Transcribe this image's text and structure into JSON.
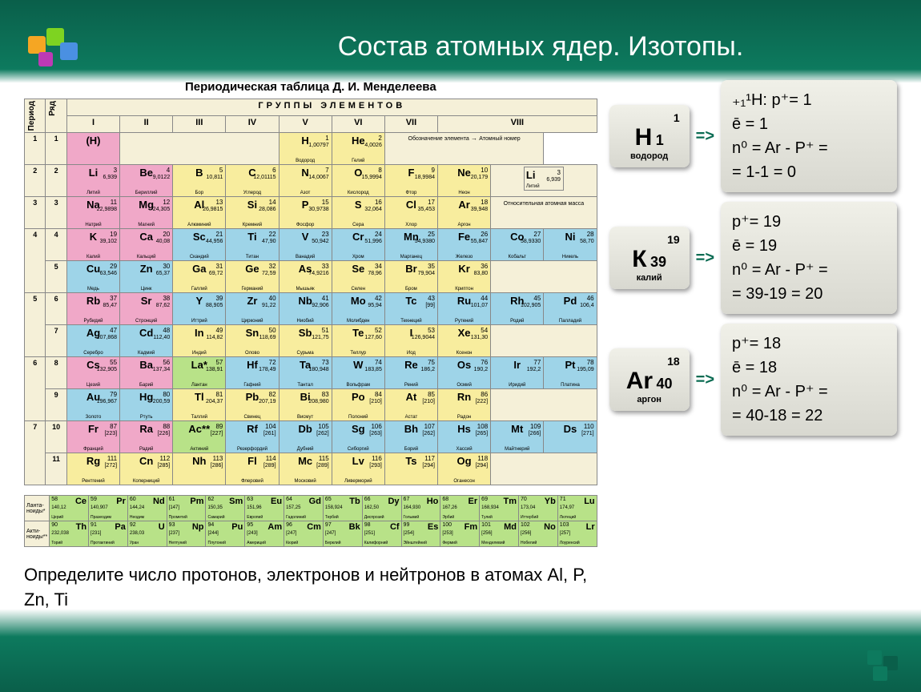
{
  "title": "Состав атомных ядер. Изотопы.",
  "table_title": "Периодическая таблица Д. И. Менделеева",
  "group_header": "ГРУППЫ ЭЛЕМЕНТОВ",
  "col_period": "Период",
  "col_row": "Ряд",
  "groups": [
    "I",
    "II",
    "III",
    "IV",
    "V",
    "VI",
    "VII",
    "VIII"
  ],
  "legend": {
    "obz": "Обозначение элемента",
    "atnum": "Атомный номер",
    "relmass": "Относительная атомная масса",
    "li_sym": "Li",
    "li_num": "3",
    "li_mass": "6,939",
    "li_name": "Литий"
  },
  "rows": [
    {
      "p": "1",
      "r": "1",
      "cells": [
        {
          "sym": "(H)",
          "num": "",
          "mass": "",
          "name": "",
          "cls": "c-pink",
          "span": 1
        },
        {
          "blank": true,
          "span": 3,
          "cls": "c-cream"
        },
        {
          "sym": "H",
          "num": "1",
          "mass": "1,00797",
          "name": "Водород",
          "cls": "c-yellow"
        },
        {
          "sym": "He",
          "num": "2",
          "mass": "4,0026",
          "name": "Гелий",
          "cls": "c-yellow"
        },
        {
          "legend": true,
          "span": 3
        }
      ]
    },
    {
      "p": "2",
      "r": "2",
      "cells": [
        {
          "sym": "Li",
          "num": "3",
          "mass": "6,939",
          "name": "Литий",
          "cls": "c-pink"
        },
        {
          "sym": "Be",
          "num": "4",
          "mass": "9,0122",
          "name": "Бериллий",
          "cls": "c-pink"
        },
        {
          "sym": "B",
          "num": "5",
          "mass": "10,811",
          "name": "Бор",
          "cls": "c-yellow"
        },
        {
          "sym": "C",
          "num": "6",
          "mass": "12,01115",
          "name": "Углерод",
          "cls": "c-yellow"
        },
        {
          "sym": "N",
          "num": "7",
          "mass": "14,0067",
          "name": "Азот",
          "cls": "c-yellow"
        },
        {
          "sym": "O",
          "num": "8",
          "mass": "15,9994",
          "name": "Кислород",
          "cls": "c-yellow"
        },
        {
          "sym": "F",
          "num": "9",
          "mass": "18,9984",
          "name": "Фтор",
          "cls": "c-yellow"
        },
        {
          "sym": "Ne",
          "num": "10",
          "mass": "20,179",
          "name": "Неон",
          "cls": "c-yellow"
        },
        {
          "legend2": true,
          "span": 3
        }
      ]
    },
    {
      "p": "3",
      "r": "3",
      "cells": [
        {
          "sym": "Na",
          "num": "11",
          "mass": "22,9898",
          "name": "Натрий",
          "cls": "c-pink"
        },
        {
          "sym": "Mg",
          "num": "12",
          "mass": "24,305",
          "name": "Магний",
          "cls": "c-pink"
        },
        {
          "sym": "Al",
          "num": "13",
          "mass": "26,9815",
          "name": "Алюминий",
          "cls": "c-yellow"
        },
        {
          "sym": "Si",
          "num": "14",
          "mass": "28,086",
          "name": "Кремний",
          "cls": "c-yellow"
        },
        {
          "sym": "P",
          "num": "15",
          "mass": "30,9738",
          "name": "Фосфор",
          "cls": "c-yellow"
        },
        {
          "sym": "S",
          "num": "16",
          "mass": "32,064",
          "name": "Сера",
          "cls": "c-yellow"
        },
        {
          "sym": "Cl",
          "num": "17",
          "mass": "35,453",
          "name": "Хлор",
          "cls": "c-yellow"
        },
        {
          "sym": "Ar",
          "num": "18",
          "mass": "39,948",
          "name": "Аргон",
          "cls": "c-yellow"
        },
        {
          "blank": true,
          "span": 3,
          "cls": "c-cream",
          "relm": true
        }
      ]
    },
    {
      "p": "4",
      "r": "4",
      "cells": [
        {
          "sym": "K",
          "num": "19",
          "mass": "39,102",
          "name": "Калий",
          "cls": "c-pink"
        },
        {
          "sym": "Ca",
          "num": "20",
          "mass": "40,08",
          "name": "Кальций",
          "cls": "c-pink"
        },
        {
          "sym": "Sc",
          "num": "21",
          "mass": "44,956",
          "name": "Скандий",
          "cls": "c-blue"
        },
        {
          "sym": "Ti",
          "num": "22",
          "mass": "47,90",
          "name": "Титан",
          "cls": "c-blue"
        },
        {
          "sym": "V",
          "num": "23",
          "mass": "50,942",
          "name": "Ванадий",
          "cls": "c-blue"
        },
        {
          "sym": "Cr",
          "num": "24",
          "mass": "51,996",
          "name": "Хром",
          "cls": "c-blue"
        },
        {
          "sym": "Mn",
          "num": "25",
          "mass": "54,9380",
          "name": "Марганец",
          "cls": "c-blue"
        },
        {
          "sym": "Fe",
          "num": "26",
          "mass": "55,847",
          "name": "Железо",
          "cls": "c-blue"
        },
        {
          "sym": "Co",
          "num": "27",
          "mass": "58,9330",
          "name": "Кобальт",
          "cls": "c-blue"
        },
        {
          "sym": "Ni",
          "num": "28",
          "mass": "58,70",
          "name": "Никель",
          "cls": "c-blue"
        }
      ]
    },
    {
      "p": "4",
      "r": "5",
      "cells": [
        {
          "sym": "Cu",
          "num": "29",
          "mass": "63,546",
          "name": "Медь",
          "cls": "c-blue"
        },
        {
          "sym": "Zn",
          "num": "30",
          "mass": "65,37",
          "name": "Цинк",
          "cls": "c-blue"
        },
        {
          "sym": "Ga",
          "num": "31",
          "mass": "69,72",
          "name": "Галлий",
          "cls": "c-yellow"
        },
        {
          "sym": "Ge",
          "num": "32",
          "mass": "72,59",
          "name": "Германий",
          "cls": "c-yellow"
        },
        {
          "sym": "As",
          "num": "33",
          "mass": "74,9216",
          "name": "Мышьяк",
          "cls": "c-yellow"
        },
        {
          "sym": "Se",
          "num": "34",
          "mass": "78,96",
          "name": "Селен",
          "cls": "c-yellow"
        },
        {
          "sym": "Br",
          "num": "35",
          "mass": "79,904",
          "name": "Бром",
          "cls": "c-yellow"
        },
        {
          "sym": "Kr",
          "num": "36",
          "mass": "83,80",
          "name": "Криптон",
          "cls": "c-yellow"
        },
        {
          "blank": true,
          "span": 3,
          "cls": "c-cream"
        }
      ]
    },
    {
      "p": "5",
      "r": "6",
      "cells": [
        {
          "sym": "Rb",
          "num": "37",
          "mass": "85,47",
          "name": "Рубидий",
          "cls": "c-pink"
        },
        {
          "sym": "Sr",
          "num": "38",
          "mass": "87,62",
          "name": "Стронций",
          "cls": "c-pink"
        },
        {
          "sym": "Y",
          "num": "39",
          "mass": "88,905",
          "name": "Иттрий",
          "cls": "c-blue"
        },
        {
          "sym": "Zr",
          "num": "40",
          "mass": "91,22",
          "name": "Цирконий",
          "cls": "c-blue"
        },
        {
          "sym": "Nb",
          "num": "41",
          "mass": "92,906",
          "name": "Ниобий",
          "cls": "c-blue"
        },
        {
          "sym": "Mo",
          "num": "42",
          "mass": "95,94",
          "name": "Молибден",
          "cls": "c-blue"
        },
        {
          "sym": "Tc",
          "num": "43",
          "mass": "[99]",
          "name": "Технеций",
          "cls": "c-blue"
        },
        {
          "sym": "Ru",
          "num": "44",
          "mass": "101,07",
          "name": "Рутений",
          "cls": "c-blue"
        },
        {
          "sym": "Rh",
          "num": "45",
          "mass": "102,905",
          "name": "Родий",
          "cls": "c-blue"
        },
        {
          "sym": "Pd",
          "num": "46",
          "mass": "106,4",
          "name": "Палладий",
          "cls": "c-blue"
        }
      ]
    },
    {
      "p": "5",
      "r": "7",
      "cells": [
        {
          "sym": "Ag",
          "num": "47",
          "mass": "107,868",
          "name": "Серебро",
          "cls": "c-blue"
        },
        {
          "sym": "Cd",
          "num": "48",
          "mass": "112,40",
          "name": "Кадмий",
          "cls": "c-blue"
        },
        {
          "sym": "In",
          "num": "49",
          "mass": "114,82",
          "name": "Индий",
          "cls": "c-yellow"
        },
        {
          "sym": "Sn",
          "num": "50",
          "mass": "118,69",
          "name": "Олово",
          "cls": "c-yellow"
        },
        {
          "sym": "Sb",
          "num": "51",
          "mass": "121,75",
          "name": "Сурьма",
          "cls": "c-yellow"
        },
        {
          "sym": "Te",
          "num": "52",
          "mass": "127,60",
          "name": "Теллур",
          "cls": "c-yellow"
        },
        {
          "sym": "I",
          "num": "53",
          "mass": "126,9044",
          "name": "Иод",
          "cls": "c-yellow"
        },
        {
          "sym": "Xe",
          "num": "54",
          "mass": "131,30",
          "name": "Ксенон",
          "cls": "c-yellow"
        },
        {
          "blank": true,
          "span": 3,
          "cls": "c-cream"
        }
      ]
    },
    {
      "p": "6",
      "r": "8",
      "cells": [
        {
          "sym": "Cs",
          "num": "55",
          "mass": "132,905",
          "name": "Цезий",
          "cls": "c-pink"
        },
        {
          "sym": "Ba",
          "num": "56",
          "mass": "137,34",
          "name": "Барий",
          "cls": "c-pink"
        },
        {
          "sym": "La*",
          "num": "57",
          "mass": "138,91",
          "name": "Лантан",
          "cls": "c-green"
        },
        {
          "sym": "Hf",
          "num": "72",
          "mass": "178,49",
          "name": "Гафний",
          "cls": "c-blue"
        },
        {
          "sym": "Ta",
          "num": "73",
          "mass": "180,948",
          "name": "Тантал",
          "cls": "c-blue"
        },
        {
          "sym": "W",
          "num": "74",
          "mass": "183,85",
          "name": "Вольфрам",
          "cls": "c-blue"
        },
        {
          "sym": "Re",
          "num": "75",
          "mass": "186,2",
          "name": "Рений",
          "cls": "c-blue"
        },
        {
          "sym": "Os",
          "num": "76",
          "mass": "190,2",
          "name": "Осмий",
          "cls": "c-blue"
        },
        {
          "sym": "Ir",
          "num": "77",
          "mass": "192,2",
          "name": "Иридий",
          "cls": "c-blue"
        },
        {
          "sym": "Pt",
          "num": "78",
          "mass": "195,09",
          "name": "Платина",
          "cls": "c-blue"
        }
      ]
    },
    {
      "p": "6",
      "r": "9",
      "cells": [
        {
          "sym": "Au",
          "num": "79",
          "mass": "196,967",
          "name": "Золото",
          "cls": "c-blue"
        },
        {
          "sym": "Hg",
          "num": "80",
          "mass": "200,59",
          "name": "Ртуть",
          "cls": "c-blue"
        },
        {
          "sym": "Tl",
          "num": "81",
          "mass": "204,37",
          "name": "Таллий",
          "cls": "c-yellow"
        },
        {
          "sym": "Pb",
          "num": "82",
          "mass": "207,19",
          "name": "Свинец",
          "cls": "c-yellow"
        },
        {
          "sym": "Bi",
          "num": "83",
          "mass": "208,980",
          "name": "Висмут",
          "cls": "c-yellow"
        },
        {
          "sym": "Po",
          "num": "84",
          "mass": "[210]",
          "name": "Полоний",
          "cls": "c-yellow"
        },
        {
          "sym": "At",
          "num": "85",
          "mass": "[210]",
          "name": "Астат",
          "cls": "c-yellow"
        },
        {
          "sym": "Rn",
          "num": "86",
          "mass": "[222]",
          "name": "Радон",
          "cls": "c-yellow"
        },
        {
          "blank": true,
          "span": 3,
          "cls": "c-cream"
        }
      ]
    },
    {
      "p": "7",
      "r": "10",
      "cells": [
        {
          "sym": "Fr",
          "num": "87",
          "mass": "[223]",
          "name": "Франций",
          "cls": "c-pink"
        },
        {
          "sym": "Ra",
          "num": "88",
          "mass": "[226]",
          "name": "Радий",
          "cls": "c-pink"
        },
        {
          "sym": "Ac**",
          "num": "89",
          "mass": "[227]",
          "name": "Актиний",
          "cls": "c-green"
        },
        {
          "sym": "Rf",
          "num": "104",
          "mass": "[261]",
          "name": "Резерфордий",
          "cls": "c-blue"
        },
        {
          "sym": "Db",
          "num": "105",
          "mass": "[262]",
          "name": "Дубний",
          "cls": "c-blue"
        },
        {
          "sym": "Sg",
          "num": "106",
          "mass": "[263]",
          "name": "Сиборгий",
          "cls": "c-blue"
        },
        {
          "sym": "Bh",
          "num": "107",
          "mass": "[262]",
          "name": "Борий",
          "cls": "c-blue"
        },
        {
          "sym": "Hs",
          "num": "108",
          "mass": "[265]",
          "name": "Хассий",
          "cls": "c-blue"
        },
        {
          "sym": "Mt",
          "num": "109",
          "mass": "[266]",
          "name": "Майтнерий",
          "cls": "c-blue"
        },
        {
          "sym": "Ds",
          "num": "110",
          "mass": "[271]",
          "name": "",
          "cls": "c-blue"
        }
      ]
    },
    {
      "p": "7",
      "r": "11",
      "cells": [
        {
          "sym": "Rg",
          "num": "111",
          "mass": "[272]",
          "name": "Рентгений",
          "cls": "c-yellow"
        },
        {
          "sym": "Cn",
          "num": "112",
          "mass": "[285]",
          "name": "Коперниций",
          "cls": "c-yellow"
        },
        {
          "sym": "Nh",
          "num": "113",
          "mass": "[286]",
          "name": "",
          "cls": "c-yellow"
        },
        {
          "sym": "Fl",
          "num": "114",
          "mass": "[289]",
          "name": "Флеровий",
          "cls": "c-yellow"
        },
        {
          "sym": "Mc",
          "num": "115",
          "mass": "[289]",
          "name": "Московий",
          "cls": "c-yellow"
        },
        {
          "sym": "Lv",
          "num": "116",
          "mass": "[293]",
          "name": "Ливерморий",
          "cls": "c-yellow"
        },
        {
          "sym": "Ts",
          "num": "117",
          "mass": "[294]",
          "name": "",
          "cls": "c-yellow"
        },
        {
          "sym": "Og",
          "num": "118",
          "mass": "[294]",
          "name": "Оганесон",
          "cls": "c-yellow"
        },
        {
          "blank": true,
          "span": 3,
          "cls": "c-cream"
        }
      ]
    }
  ],
  "fblock": {
    "lan_label": "Ланта-ноиды*",
    "act_label": "Акти-ноиды**",
    "lan": [
      {
        "sym": "Ce",
        "num": "58",
        "mass": "140,12",
        "name": "Церий"
      },
      {
        "sym": "Pr",
        "num": "59",
        "mass": "140,907",
        "name": "Празеодим"
      },
      {
        "sym": "Nd",
        "num": "60",
        "mass": "144,24",
        "name": "Неодим"
      },
      {
        "sym": "Pm",
        "num": "61",
        "mass": "[147]",
        "name": "Прометий"
      },
      {
        "sym": "Sm",
        "num": "62",
        "mass": "150,35",
        "name": "Самарий"
      },
      {
        "sym": "Eu",
        "num": "63",
        "mass": "151,96",
        "name": "Европий"
      },
      {
        "sym": "Gd",
        "num": "64",
        "mass": "157,25",
        "name": "Гадолиний"
      },
      {
        "sym": "Tb",
        "num": "65",
        "mass": "158,924",
        "name": "Тербий"
      },
      {
        "sym": "Dy",
        "num": "66",
        "mass": "162,50",
        "name": "Диспрозий"
      },
      {
        "sym": "Ho",
        "num": "67",
        "mass": "164,930",
        "name": "Гольмий"
      },
      {
        "sym": "Er",
        "num": "68",
        "mass": "167,26",
        "name": "Эрбий"
      },
      {
        "sym": "Tm",
        "num": "69",
        "mass": "168,934",
        "name": "Тулий"
      },
      {
        "sym": "Yb",
        "num": "70",
        "mass": "173,04",
        "name": "Иттербий"
      },
      {
        "sym": "Lu",
        "num": "71",
        "mass": "174,97",
        "name": "Лютеций"
      }
    ],
    "act": [
      {
        "sym": "Th",
        "num": "90",
        "mass": "232,038",
        "name": "Торий"
      },
      {
        "sym": "Pa",
        "num": "91",
        "mass": "[231]",
        "name": "Протактиний"
      },
      {
        "sym": "U",
        "num": "92",
        "mass": "238,03",
        "name": "Уран"
      },
      {
        "sym": "Np",
        "num": "93",
        "mass": "[237]",
        "name": "Нептуний"
      },
      {
        "sym": "Pu",
        "num": "94",
        "mass": "[244]",
        "name": "Плутоний"
      },
      {
        "sym": "Am",
        "num": "95",
        "mass": "[243]",
        "name": "Америций"
      },
      {
        "sym": "Cm",
        "num": "96",
        "mass": "[247]",
        "name": "Кюрий"
      },
      {
        "sym": "Bk",
        "num": "97",
        "mass": "[247]",
        "name": "Берклий"
      },
      {
        "sym": "Cf",
        "num": "98",
        "mass": "[251]",
        "name": "Калифорний"
      },
      {
        "sym": "Es",
        "num": "99",
        "mass": "[254]",
        "name": "Эйнштейний"
      },
      {
        "sym": "Fm",
        "num": "100",
        "mass": "[253]",
        "name": "Фермий"
      },
      {
        "sym": "Md",
        "num": "101",
        "mass": "[256]",
        "name": "Менделевий"
      },
      {
        "sym": "No",
        "num": "102",
        "mass": "[256]",
        "name": "Нобелий"
      },
      {
        "sym": "Lr",
        "num": "103",
        "mass": "[257]",
        "name": "Лоуренсий"
      }
    ]
  },
  "question": "Определите число протонов, электронов и нейтронов в атомах Al, P, Zn, Ti",
  "isotopes": [
    {
      "card": {
        "num": "1",
        "sym": "H",
        "mass": "1",
        "name": "водород"
      },
      "calc": {
        "l1": "₊₁¹H: p⁺= 1",
        "l2": "      ē = 1",
        "l3": "n⁰ = Ar - P⁺ =",
        "l4": "= 1-1 = 0"
      }
    },
    {
      "card": {
        "num": "19",
        "sym": "К",
        "mass": "39",
        "name": "калий"
      },
      "calc": {
        "l1": "p⁺= 19",
        "l2": "ē  = 19",
        "l3": "n⁰ = Ar - P⁺ =",
        "l4": "= 39-19 = 20"
      }
    },
    {
      "card": {
        "num": "18",
        "sym": "Ar",
        "mass": "40",
        "name": "аргон"
      },
      "calc": {
        "l1": "p⁺= 18",
        "l2": "ē  = 18",
        "l3": "n⁰ = Ar - P⁺ =",
        "l4": "= 40-18 = 22"
      }
    }
  ],
  "arrow": "=>",
  "colors": {
    "pink": "#f0a8c8",
    "yellow": "#f8ed9e",
    "blue": "#9ed4e8",
    "green": "#b8e288",
    "cream": "#f5f0d8",
    "title": "#ffffff",
    "bg_dark": "#0a5f4a",
    "bg_mid": "#0d7a5e"
  }
}
